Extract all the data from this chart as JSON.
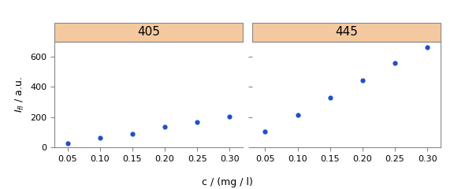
{
  "subplots": [
    {
      "label": "405",
      "x": [
        0.05,
        0.1,
        0.15,
        0.2,
        0.25,
        0.3
      ],
      "y": [
        25,
        65,
        90,
        135,
        170,
        205
      ]
    },
    {
      "label": "445",
      "x": [
        0.05,
        0.1,
        0.15,
        0.2,
        0.25,
        0.3
      ],
      "y": [
        105,
        215,
        330,
        445,
        560,
        660
      ]
    }
  ],
  "ylabel": "$I_{fl}$ / a.u.",
  "xlabel": "c / (mg / l)",
  "ylim": [
    0,
    700
  ],
  "yticks": [
    0,
    200,
    400,
    600
  ],
  "xticks": [
    0.05,
    0.1,
    0.15,
    0.2,
    0.25,
    0.3
  ],
  "dot_color": "#1f4fc8",
  "header_color": "#f5c9a0",
  "header_edge_color": "#888888",
  "bg_color": "#ffffff",
  "dot_size": 12
}
